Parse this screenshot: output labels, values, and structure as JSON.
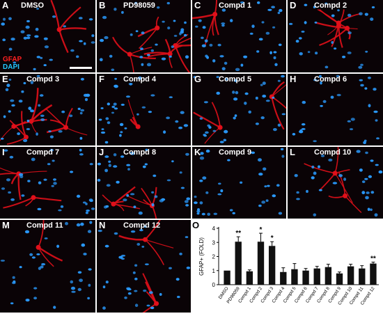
{
  "figure": {
    "stain_labels": [
      {
        "text": "GFAP",
        "color": "#ff2020"
      },
      {
        "text": "DAPI",
        "color": "#22c8ff"
      }
    ],
    "panels": [
      {
        "letter": "A",
        "title": "DMSO"
      },
      {
        "letter": "B",
        "title": "PD98059"
      },
      {
        "letter": "C",
        "title": "Compd 1"
      },
      {
        "letter": "D",
        "title": "Compd 2"
      },
      {
        "letter": "E",
        "title": "Compd 3"
      },
      {
        "letter": "F",
        "title": "Compd 4"
      },
      {
        "letter": "G",
        "title": "Compd 5"
      },
      {
        "letter": "H",
        "title": "Compd 6"
      },
      {
        "letter": "I",
        "title": "Compd 7"
      },
      {
        "letter": "J",
        "title": "Compd 8"
      },
      {
        "letter": "K",
        "title": "Compd 9"
      },
      {
        "letter": "L",
        "title": "Compd 10"
      },
      {
        "letter": "M",
        "title": "Compd 11"
      },
      {
        "letter": "N",
        "title": "Compd 12"
      }
    ],
    "chart_letter": "O"
  },
  "colors": {
    "nucleus": "#2a9bff",
    "gfap": "#e0101a",
    "panel_bg": "#0a0306",
    "bar": "#111111"
  },
  "chart_data": {
    "type": "bar",
    "ylabel": "GFAP+ (FOLD)",
    "xlabel": "",
    "ylim": [
      0,
      4
    ],
    "yticks": [
      0,
      1,
      2,
      3,
      4
    ],
    "categories": [
      "DMSO",
      "PD98059",
      "Compd 1",
      "Compd 2",
      "Compd 3",
      "Compd 4",
      "Compd 5",
      "Compd 6",
      "Compd 7",
      "Compd 8",
      "Compd 9",
      "Compd 10",
      "Compd 11",
      "Compd 12"
    ],
    "values": [
      1.0,
      3.05,
      0.95,
      3.05,
      2.75,
      0.9,
      1.1,
      1.0,
      1.15,
      1.25,
      0.8,
      1.3,
      1.15,
      1.5
    ],
    "errors": [
      0.0,
      0.35,
      0.1,
      0.6,
      0.3,
      0.3,
      0.4,
      0.15,
      0.15,
      0.2,
      0.1,
      0.15,
      0.2,
      0.1
    ],
    "significance": [
      "",
      "**",
      "",
      "*",
      "*",
      "",
      "",
      "",
      "",
      "",
      "",
      "",
      "",
      "**"
    ]
  }
}
